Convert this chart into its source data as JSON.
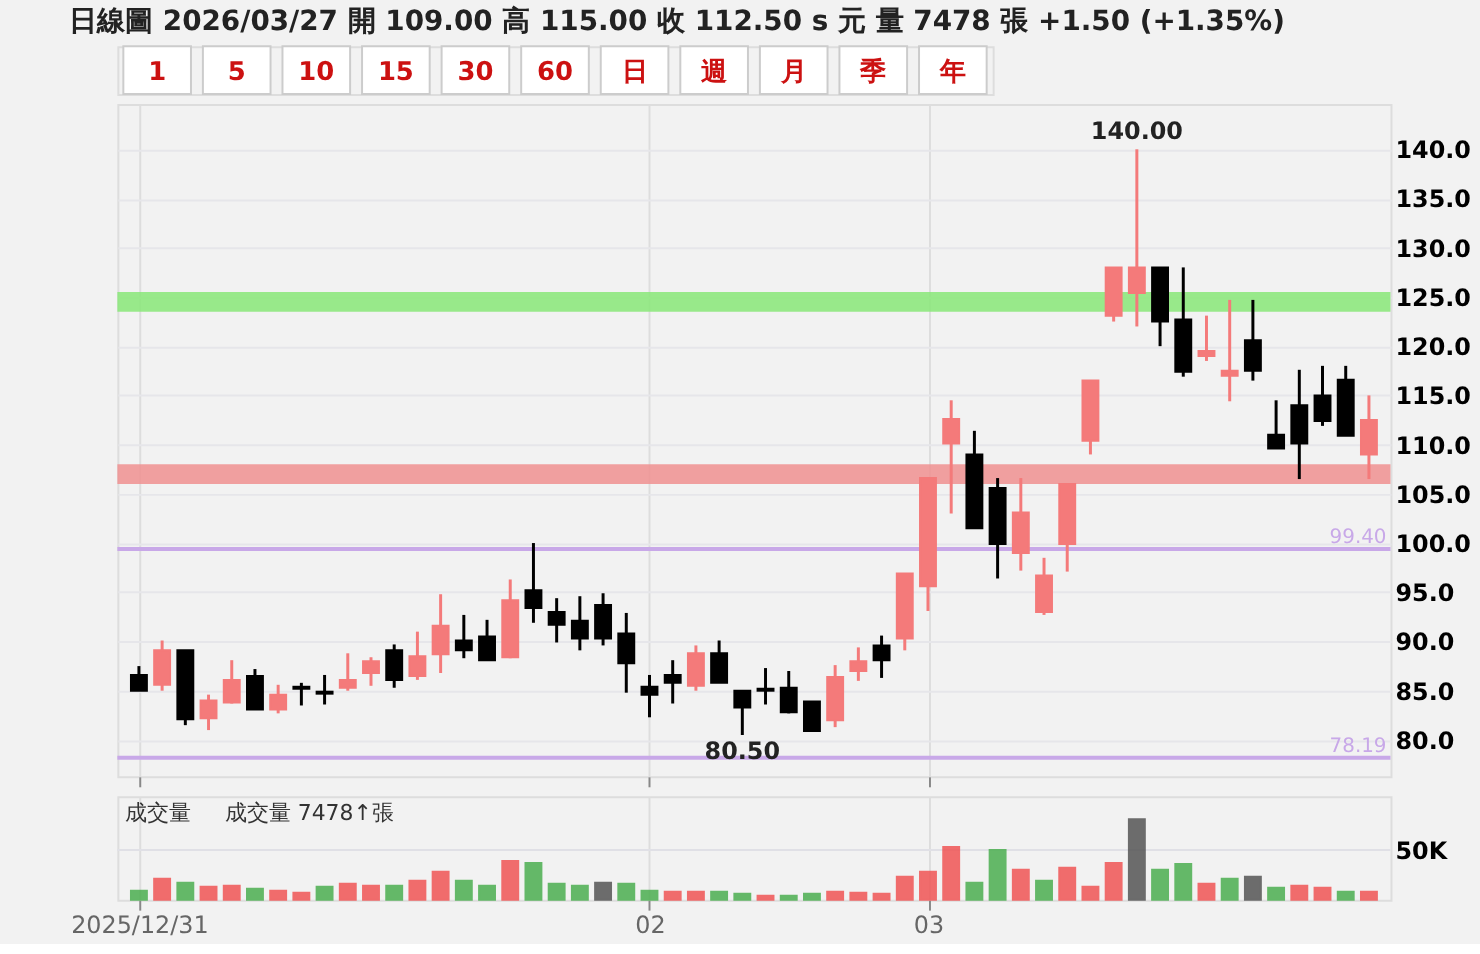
{
  "chart_data": [
    {
      "type": "candlestick",
      "title": "日線圖  2026/03/27  開 109.00  高 115.00  收 112.50 s 元  量 7478 張  +1.50 (+1.35%)",
      "annotations": [
        "1 5 10 15 30 60 日 週 月 季 年",
        {
          "text": "140.00",
          "y": 140
        },
        {
          "text": "80.50",
          "y": 80.5
        }
      ],
      "categories": [
        "2025/12/31",
        null,
        null,
        null,
        null,
        null,
        null,
        null,
        null,
        null,
        null,
        null,
        null,
        null,
        null,
        null,
        null,
        null,
        null,
        null,
        null,
        null,
        "02",
        null,
        null,
        null,
        null,
        null,
        null,
        null,
        null,
        null,
        null,
        null,
        "03",
        null,
        null,
        null,
        null,
        null,
        null,
        null,
        null,
        null,
        null,
        null,
        null,
        null,
        null,
        null,
        null,
        null,
        null,
        null
      ],
      "ohlc": [
        [
          86.6,
          87.5,
          85.0,
          85.0
        ],
        [
          85.6,
          90.1,
          85.0,
          89.1
        ],
        [
          89.1,
          89.1,
          81.5,
          82.1
        ],
        [
          82.2,
          84.6,
          81.0,
          84.0
        ],
        [
          83.8,
          88.1,
          83.7,
          86.1
        ],
        [
          86.5,
          87.2,
          83.1,
          83.1
        ],
        [
          83.1,
          85.6,
          82.7,
          84.6
        ],
        [
          85.4,
          85.8,
          83.5,
          85.2
        ],
        [
          84.9,
          86.6,
          83.6,
          84.7
        ],
        [
          85.3,
          88.8,
          85.0,
          86.1
        ],
        [
          86.8,
          88.4,
          85.5,
          88.0
        ],
        [
          89.1,
          89.7,
          85.3,
          86.1
        ],
        [
          86.5,
          91.0,
          86.1,
          88.5
        ],
        [
          88.7,
          94.8,
          86.8,
          91.6
        ],
        [
          90.1,
          92.7,
          88.3,
          89.1
        ],
        [
          90.5,
          92.2,
          88.1,
          88.1
        ],
        [
          88.4,
          96.3,
          88.3,
          94.2
        ],
        [
          95.2,
          100.0,
          91.9,
          93.4
        ],
        [
          93.0,
          94.4,
          89.9,
          91.7
        ],
        [
          92.1,
          94.6,
          89.1,
          90.3
        ],
        [
          93.7,
          94.9,
          89.6,
          90.3
        ],
        [
          90.8,
          92.9,
          84.8,
          87.8
        ],
        [
          85.4,
          86.6,
          82.3,
          84.6
        ],
        [
          86.6,
          88.1,
          83.7,
          85.8
        ],
        [
          85.5,
          89.6,
          85.0,
          88.8
        ],
        [
          88.8,
          90.1,
          85.8,
          85.8
        ],
        [
          85.0,
          85.0,
          80.5,
          83.3
        ],
        [
          85.2,
          87.3,
          83.6,
          85.0
        ],
        [
          85.3,
          87.0,
          82.7,
          82.8
        ],
        [
          83.9,
          83.9,
          80.9,
          80.9
        ],
        [
          82.0,
          87.6,
          81.3,
          86.4
        ],
        [
          87.0,
          89.4,
          86.0,
          88.0
        ],
        [
          89.6,
          90.6,
          86.3,
          88.1
        ],
        [
          90.3,
          96.9,
          89.1,
          96.9
        ],
        [
          95.6,
          106.6,
          93.1,
          106.6
        ],
        [
          110.1,
          114.5,
          103.0,
          112.6
        ],
        [
          109.0,
          111.4,
          101.5,
          101.5
        ],
        [
          105.6,
          106.6,
          96.4,
          99.9
        ],
        [
          99.0,
          106.6,
          97.2,
          103.1
        ],
        [
          93.0,
          98.5,
          92.7,
          96.7
        ],
        [
          99.9,
          106.0,
          97.1,
          106.0
        ],
        [
          110.4,
          116.5,
          109.0,
          116.5
        ],
        [
          123.1,
          128.0,
          122.5,
          128.0
        ],
        [
          125.4,
          140.0,
          122.0,
          128.0
        ],
        [
          128.0,
          128.0,
          120.0,
          122.5
        ],
        [
          122.7,
          128.0,
          116.9,
          117.4
        ],
        [
          119.0,
          123.1,
          118.5,
          119.5
        ],
        [
          117.0,
          124.7,
          114.4,
          117.5
        ],
        [
          120.6,
          124.7,
          116.5,
          117.5
        ],
        [
          111.0,
          114.5,
          109.6,
          109.6
        ],
        [
          114.0,
          117.6,
          106.5,
          110.1
        ],
        [
          115.0,
          118.0,
          111.9,
          112.4
        ],
        [
          116.6,
          118.0,
          110.9,
          110.9
        ],
        [
          109.0,
          115.0,
          106.5,
          112.5
        ]
      ],
      "colors": [
        "#000000",
        "#f47a7a",
        "#000000",
        "#f47a7a",
        "#f47a7a",
        "#000000",
        "#f47a7a",
        "#000000",
        "#000000",
        "#f47a7a",
        "#f47a7a",
        "#000000",
        "#f47a7a",
        "#f47a7a",
        "#000000",
        "#000000",
        "#f47a7a",
        "#000000",
        "#000000",
        "#000000",
        "#000000",
        "#000000",
        "#000000",
        "#000000",
        "#f47a7a",
        "#000000",
        "#000000",
        "#000000",
        "#000000",
        "#000000",
        "#f47a7a",
        "#f47a7a",
        "#000000",
        "#f47a7a",
        "#f47a7a",
        "#f47a7a",
        "#000000",
        "#000000",
        "#f47a7a",
        "#f47a7a",
        "#f47a7a",
        "#f47a7a",
        "#f47a7a",
        "#f47a7a",
        "#000000",
        "#000000",
        "#f47a7a",
        "#f47a7a",
        "#000000",
        "#000000",
        "#000000",
        "#000000",
        "#000000",
        "#f47a7a"
      ],
      "ylim": [
        76.3,
        144.6
      ],
      "yticks": [
        {
          "value": 80,
          "label": "80.0"
        },
        {
          "value": 85,
          "label": "85.0"
        },
        {
          "value": 90,
          "label": "90.0"
        },
        {
          "value": 95,
          "label": "95.0"
        },
        {
          "value": 100,
          "label": "100.0"
        },
        {
          "value": 105,
          "label": "105.0"
        },
        {
          "value": 110,
          "label": "110.0"
        },
        {
          "value": 115,
          "label": "115.0"
        },
        {
          "value": 120,
          "label": "120.0"
        },
        {
          "value": 125,
          "label": "125.0"
        },
        {
          "value": 130,
          "label": "130.0"
        },
        {
          "value": 135,
          "label": "135.0"
        },
        {
          "value": 140,
          "label": "140.0"
        }
      ],
      "ref_lines": [
        {
          "axis": "y",
          "value": 99.4,
          "label": "99.40",
          "color": "#c8a8e8"
        },
        {
          "axis": "y",
          "value": 78.19,
          "label": "78.19",
          "color": "#c8a8e8"
        }
      ],
      "bands": [
        {
          "axis": "y",
          "from": 123.5,
          "to": 125.5,
          "color": "#88e878"
        },
        {
          "axis": "y",
          "from": 106.0,
          "to": 108.0,
          "color": "#f09090"
        }
      ],
      "grid": true,
      "tick_labels": "y"
    },
    {
      "type": "bar",
      "title": "成交量",
      "annotations": [
        "成交量 7478↑張"
      ],
      "categories": [
        "2025/12/31",
        null,
        null,
        null,
        null,
        null,
        null,
        null,
        null,
        null,
        null,
        null,
        null,
        null,
        null,
        null,
        null,
        null,
        null,
        null,
        null,
        null,
        "02",
        null,
        null,
        null,
        null,
        null,
        null,
        null,
        null,
        null,
        null,
        null,
        "03",
        null,
        null,
        null,
        null,
        null,
        null,
        null,
        null,
        null,
        null,
        null,
        null,
        null,
        null,
        null,
        null,
        null,
        null,
        null
      ],
      "values": [
        9000,
        21000,
        17000,
        13000,
        14000,
        11000,
        9000,
        7000,
        13000,
        16000,
        14000,
        14000,
        19000,
        28000,
        19000,
        14000,
        39000,
        37000,
        16000,
        14000,
        17000,
        16000,
        9000,
        8000,
        8000,
        8000,
        6000,
        4000,
        4000,
        6000,
        8000,
        7000,
        6000,
        23000,
        28000,
        53000,
        17000,
        50000,
        30000,
        19000,
        32000,
        13000,
        37000,
        81000,
        30000,
        36000,
        16000,
        21000,
        23000,
        12000,
        14000,
        12000,
        8000,
        8000
      ],
      "colors": [
        "#4caf50",
        "#f05555",
        "#4caf50",
        "#f05555",
        "#f05555",
        "#4caf50",
        "#f05555",
        "#f05555",
        "#4caf50",
        "#f05555",
        "#f05555",
        "#4caf50",
        "#f05555",
        "#f05555",
        "#4caf50",
        "#4caf50",
        "#f05555",
        "#4caf50",
        "#4caf50",
        "#4caf50",
        "#555555",
        "#4caf50",
        "#4caf50",
        "#f05555",
        "#f05555",
        "#4caf50",
        "#4caf50",
        "#f05555",
        "#4caf50",
        "#4caf50",
        "#f05555",
        "#f05555",
        "#f05555",
        "#f05555",
        "#f05555",
        "#f05555",
        "#4caf50",
        "#4caf50",
        "#f05555",
        "#4caf50",
        "#f05555",
        "#f05555",
        "#f05555",
        "#555555",
        "#4caf50",
        "#4caf50",
        "#f05555",
        "#4caf50",
        "#555555",
        "#4caf50",
        "#f05555",
        "#f05555",
        "#4caf50",
        "#f05555"
      ],
      "ylim": [
        0,
        104000
      ],
      "yticks": [
        {
          "value": 0,
          "label": null
        },
        {
          "value": 50000,
          "label": "50K"
        }
      ],
      "ref_lines": [
        {
          "axis": "y",
          "value": 50000,
          "color": "#e0e0e6"
        }
      ],
      "grid": "x"
    }
  ]
}
